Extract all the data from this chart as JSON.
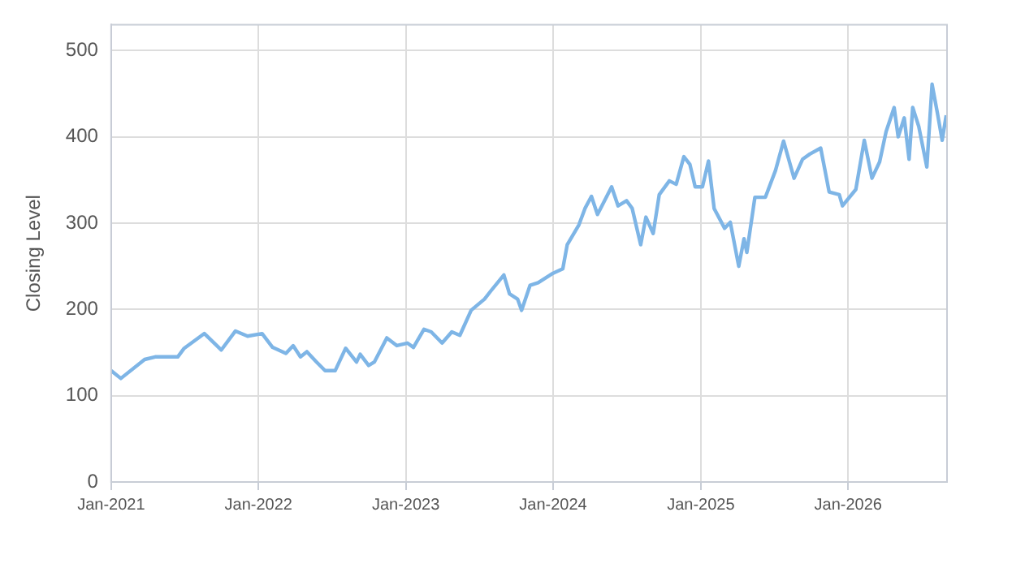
{
  "chart_data": {
    "type": "line",
    "ylabel": "Closing Level",
    "xlim": [
      "2021-01",
      "2026-09-03"
    ],
    "ylim": [
      0,
      530
    ],
    "yticks": [
      0,
      100,
      200,
      300,
      400,
      500
    ],
    "xticks": [
      {
        "value": "2021-01",
        "label": "Jan-2021"
      },
      {
        "value": "2022-01",
        "label": "Jan-2022"
      },
      {
        "value": "2023-01",
        "label": "Jan-2023"
      },
      {
        "value": "2024-01",
        "label": "Jan-2024"
      },
      {
        "value": "2025-01",
        "label": "Jan-2025"
      },
      {
        "value": "2026-01",
        "label": "Jan-2026"
      }
    ],
    "grid": true,
    "legend": false,
    "marker": "none",
    "line_style": "solid",
    "series": [
      {
        "color": "#7eb5e6",
        "x": [
          "2021-01-01",
          "2021-01-25",
          "2021-03-25",
          "2021-04-20",
          "2021-06-15",
          "2021-07-01",
          "2021-08-20",
          "2021-10-01",
          "2021-11-05",
          "2021-12-05",
          "2022-01-10",
          "2022-02-05",
          "2022-03-10",
          "2022-03-28",
          "2022-04-15",
          "2022-05-01",
          "2022-05-25",
          "2022-06-15",
          "2022-07-10",
          "2022-08-05",
          "2022-09-01",
          "2022-09-10",
          "2022-10-01",
          "2022-10-15",
          "2022-11-15",
          "2022-12-10",
          "2023-01-05",
          "2023-01-20",
          "2023-02-15",
          "2023-03-05",
          "2023-04-01",
          "2023-04-25",
          "2023-05-15",
          "2023-06-12",
          "2023-07-15",
          "2023-07-30",
          "2023-09-01",
          "2023-09-15",
          "2023-10-05",
          "2023-10-15",
          "2023-11-05",
          "2023-11-25",
          "2024-01-01",
          "2024-01-25",
          "2024-02-05",
          "2024-03-05",
          "2024-03-20",
          "2024-04-05",
          "2024-04-20",
          "2024-05-25",
          "2024-06-10",
          "2024-07-01",
          "2024-07-15",
          "2024-08-05",
          "2024-08-18",
          "2024-09-05",
          "2024-09-20",
          "2024-10-15",
          "2024-11-01",
          "2024-11-20",
          "2024-12-05",
          "2024-12-18",
          "2025-01-05",
          "2025-01-20",
          "2025-02-03",
          "2025-03-01",
          "2025-03-15",
          "2025-04-05",
          "2025-04-18",
          "2025-04-25",
          "2025-05-15",
          "2025-06-10",
          "2025-07-05",
          "2025-07-25",
          "2025-08-20",
          "2025-09-10",
          "2025-09-28",
          "2025-10-25",
          "2025-11-15",
          "2025-12-10",
          "2025-12-18",
          "2026-01-20",
          "2026-02-10",
          "2026-03-01",
          "2026-03-20",
          "2026-04-05",
          "2026-04-25",
          "2026-05-05",
          "2026-05-20",
          "2026-06-01",
          "2026-06-10",
          "2026-06-25",
          "2026-07-15",
          "2026-07-28",
          "2026-08-10",
          "2026-08-22",
          "2026-09-01"
        ],
        "values": [
          129,
          120,
          142,
          145,
          145,
          155,
          172,
          153,
          175,
          169,
          172,
          156,
          149,
          158,
          145,
          151,
          139,
          129,
          129,
          155,
          139,
          148,
          135,
          139,
          167,
          158,
          161,
          156,
          177,
          174,
          161,
          174,
          170,
          199,
          212,
          221,
          240,
          218,
          212,
          199,
          228,
          231,
          242,
          247,
          275,
          298,
          317,
          331,
          310,
          342,
          320,
          326,
          317,
          275,
          307,
          288,
          333,
          349,
          345,
          377,
          368,
          342,
          342,
          372,
          317,
          294,
          301,
          250,
          282,
          266,
          330,
          330,
          361,
          395,
          352,
          374,
          380,
          387,
          336,
          333,
          320,
          339,
          396,
          352,
          371,
          406,
          434,
          400,
          422,
          374,
          434,
          412,
          365,
          461,
          428,
          396,
          425
        ]
      }
    ]
  }
}
